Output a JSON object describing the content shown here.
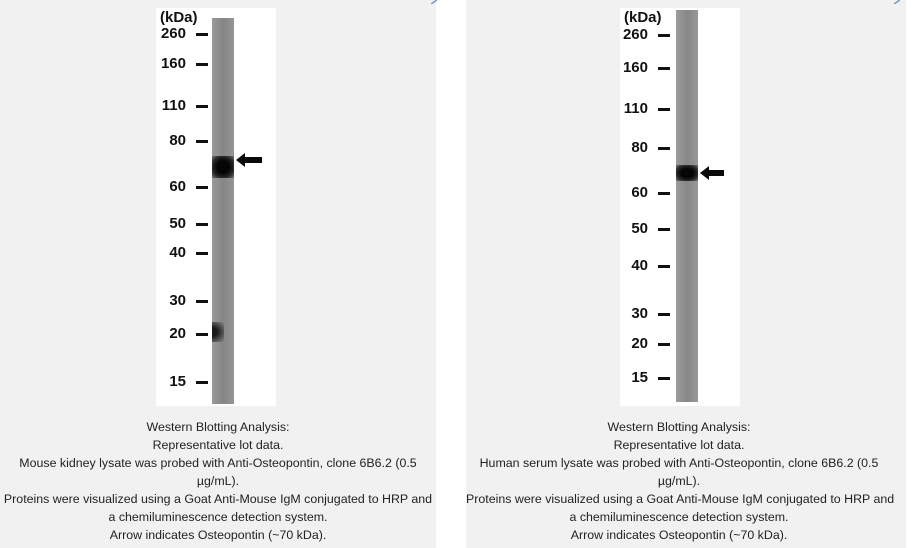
{
  "panels": [
    {
      "unit": "(kDa)",
      "markers": [
        "260",
        "160",
        "110",
        "80",
        "60",
        "50",
        "40",
        "30",
        "20",
        "15"
      ],
      "caption": [
        "Western Blotting Analysis:",
        "Representative lot data.",
        "Mouse kidney lysate was probed with Anti-Osteopontin, clone 6B6.2 (0.5",
        "µg/mL).",
        "Proteins were visualized using a Goat Anti-Mouse IgM conjugated to HRP and",
        "a chemiluminescence detection system.",
        "Arrow indicates Osteopontin (~70 kDa)."
      ]
    },
    {
      "unit": "(kDa)",
      "markers": [
        "260",
        "160",
        "110",
        "80",
        "60",
        "50",
        "40",
        "30",
        "20",
        "15"
      ],
      "caption": [
        "Western Blotting Analysis:",
        "Representative lot data.",
        "Human serum lysate was probed with Anti-Osteopontin, clone 6B6.2 (0.5",
        "µg/mL).",
        "Proteins were visualized using a Goat Anti-Mouse IgM conjugated to HRP and",
        "a chemiluminescence detection system.",
        "Arrow indicates Osteopontin (~70 kDa)."
      ]
    }
  ],
  "colors": {
    "lane_left": "#8c8c8c",
    "lane_right": "#8e8e8e",
    "band": "#0a0a0a",
    "panel_bg": "#f1f1f1"
  },
  "icons": [
    "arrow-right-pointing-left-icon",
    "corner-arrow-icon"
  ]
}
